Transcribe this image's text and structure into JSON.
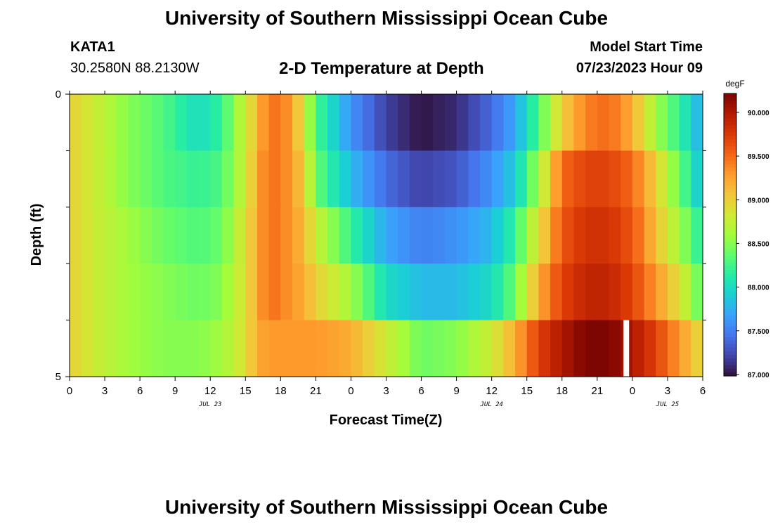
{
  "header": {
    "title": "University of Southern Mississippi Ocean Cube",
    "station": "KATA1",
    "coordinates": "30.2580N  88.2130W",
    "plot_title": "2-D Temperature at Depth",
    "model_start_label": "Model Start Time",
    "model_start_time": "07/23/2023 Hour 09"
  },
  "footer": {
    "title": "University of Southern Mississippi Ocean Cube"
  },
  "chart_data": {
    "type": "heatmap",
    "title": "2-D Temperature at Depth",
    "xlabel": "Forecast Time(Z)",
    "ylabel": "Depth (ft)",
    "x_tick_labels": [
      "0",
      "3",
      "6",
      "9",
      "12",
      "15",
      "18",
      "21",
      "0",
      "3",
      "6",
      "9",
      "12",
      "15",
      "18",
      "21",
      "0",
      "3",
      "6"
    ],
    "x_date_labels": [
      {
        "label": "JUL 23",
        "hour_index": 12
      },
      {
        "label": "JUL 24",
        "hour_index": 36
      },
      {
        "label": "JUL 25",
        "hour_index": 51
      }
    ],
    "x_range_hours": [
      0,
      54
    ],
    "y_tick_labels": [
      {
        "value": 0,
        "label": "0"
      },
      {
        "value": 5,
        "label": "5"
      }
    ],
    "y_range": [
      0,
      5
    ],
    "y_minor_ticks": [
      1,
      2,
      3,
      4
    ],
    "colorbar": {
      "label": "degF",
      "range": [
        86.9833,
        90.2167
      ],
      "tick_labels": [
        "90.000",
        "89.500",
        "89.000",
        "88.500",
        "88.000",
        "87.500",
        "87.000"
      ],
      "tick_values": [
        90.0,
        89.5,
        89.0,
        88.5,
        88.0,
        87.5,
        87.0
      ],
      "colormap": [
        "#30123b",
        "#4145ab",
        "#4675ed",
        "#39a2fc",
        "#1bcfd4",
        "#24eca6",
        "#61fc6c",
        "#a4fc3b",
        "#d1e834",
        "#f3c63a",
        "#fe9b2d",
        "#f36315",
        "#d93806",
        "#b11901",
        "#7a0402"
      ]
    },
    "depth_levels": [
      0,
      1,
      2,
      3,
      4,
      5
    ],
    "temperature_degF_by_depth": [
      {
        "depth": 0,
        "t": [
          [
            0,
            89.0
          ],
          [
            2,
            88.8
          ],
          [
            5,
            88.5
          ],
          [
            8,
            88.3
          ],
          [
            11,
            88.0
          ],
          [
            13,
            88.2
          ],
          [
            15,
            88.8
          ],
          [
            16,
            89.1
          ],
          [
            17,
            89.5
          ],
          [
            19,
            89.3
          ],
          [
            20,
            88.8
          ],
          [
            21,
            88.3
          ],
          [
            24,
            87.6
          ],
          [
            27,
            87.2
          ],
          [
            30,
            87.0
          ],
          [
            33,
            87.1
          ],
          [
            36,
            87.4
          ],
          [
            38,
            87.7
          ],
          [
            40,
            88.3
          ],
          [
            42,
            89.0
          ],
          [
            44,
            89.4
          ],
          [
            46,
            89.5
          ],
          [
            48,
            89.2
          ],
          [
            50,
            88.6
          ],
          [
            52,
            88.2
          ],
          [
            54,
            87.7
          ]
        ]
      },
      {
        "depth": 1,
        "t": [
          [
            0,
            89.0
          ],
          [
            2,
            88.8
          ],
          [
            5,
            88.5
          ],
          [
            8,
            88.3
          ],
          [
            11,
            88.2
          ],
          [
            13,
            88.3
          ],
          [
            15,
            88.8
          ],
          [
            16,
            89.2
          ],
          [
            17,
            89.5
          ],
          [
            19,
            89.3
          ],
          [
            20,
            89.0
          ],
          [
            21,
            88.4
          ],
          [
            24,
            87.8
          ],
          [
            27,
            87.4
          ],
          [
            30,
            87.2
          ],
          [
            33,
            87.3
          ],
          [
            36,
            87.6
          ],
          [
            38,
            87.9
          ],
          [
            40,
            88.6
          ],
          [
            42,
            89.5
          ],
          [
            44,
            89.7
          ],
          [
            46,
            89.7
          ],
          [
            48,
            89.5
          ],
          [
            50,
            89.0
          ],
          [
            52,
            88.4
          ],
          [
            54,
            87.8
          ]
        ]
      },
      {
        "depth": 2,
        "t": [
          [
            0,
            89.0
          ],
          [
            2,
            88.8
          ],
          [
            5,
            88.6
          ],
          [
            8,
            88.4
          ],
          [
            11,
            88.3
          ],
          [
            13,
            88.4
          ],
          [
            15,
            88.9
          ],
          [
            16,
            89.2
          ],
          [
            17,
            89.5
          ],
          [
            19,
            89.3
          ],
          [
            20,
            89.1
          ],
          [
            21,
            88.8
          ],
          [
            24,
            88.2
          ],
          [
            27,
            87.7
          ],
          [
            30,
            87.5
          ],
          [
            33,
            87.6
          ],
          [
            36,
            87.8
          ],
          [
            38,
            88.2
          ],
          [
            40,
            88.9
          ],
          [
            42,
            89.6
          ],
          [
            44,
            89.8
          ],
          [
            46,
            89.8
          ],
          [
            48,
            89.6
          ],
          [
            50,
            89.1
          ],
          [
            52,
            88.6
          ],
          [
            54,
            88.1
          ]
        ]
      },
      {
        "depth": 3,
        "t": [
          [
            0,
            89.0
          ],
          [
            2,
            88.8
          ],
          [
            5,
            88.6
          ],
          [
            8,
            88.5
          ],
          [
            11,
            88.4
          ],
          [
            13,
            88.5
          ],
          [
            15,
            88.9
          ],
          [
            16,
            89.2
          ],
          [
            17,
            89.5
          ],
          [
            19,
            89.3
          ],
          [
            20,
            89.2
          ],
          [
            21,
            89.0
          ],
          [
            24,
            88.6
          ],
          [
            27,
            88.0
          ],
          [
            30,
            87.8
          ],
          [
            33,
            87.8
          ],
          [
            36,
            88.0
          ],
          [
            38,
            88.4
          ],
          [
            40,
            89.2
          ],
          [
            42,
            89.7
          ],
          [
            44,
            89.9
          ],
          [
            46,
            89.9
          ],
          [
            48,
            89.7
          ],
          [
            50,
            89.3
          ],
          [
            52,
            88.9
          ],
          [
            54,
            88.3
          ]
        ]
      },
      {
        "depth": 4,
        "t": [
          [
            0,
            89.0
          ],
          [
            2,
            88.8
          ],
          [
            5,
            88.6
          ],
          [
            8,
            88.5
          ],
          [
            11,
            88.4
          ],
          [
            13,
            88.5
          ],
          [
            15,
            88.9
          ],
          [
            16,
            89.2
          ],
          [
            17,
            89.4
          ],
          [
            19,
            89.3
          ],
          [
            20,
            89.2
          ],
          [
            21,
            89.2
          ],
          [
            24,
            89.0
          ],
          [
            27,
            88.4
          ],
          [
            30,
            88.1
          ],
          [
            33,
            88.2
          ],
          [
            36,
            88.5
          ],
          [
            38,
            88.9
          ],
          [
            40,
            89.5
          ],
          [
            42,
            89.9
          ],
          [
            44,
            90.1
          ],
          [
            46,
            90.1
          ],
          [
            48,
            89.9
          ],
          [
            50,
            89.5
          ],
          [
            52,
            89.1
          ],
          [
            54,
            88.6
          ]
        ]
      },
      {
        "depth": 5,
        "t": [
          [
            0,
            89.0
          ],
          [
            2,
            88.8
          ],
          [
            5,
            88.6
          ],
          [
            8,
            88.5
          ],
          [
            11,
            88.5
          ],
          [
            13,
            88.6
          ],
          [
            15,
            88.9
          ],
          [
            16,
            89.2
          ],
          [
            17,
            89.3
          ],
          [
            19,
            89.3
          ],
          [
            20,
            89.3
          ],
          [
            21,
            89.3
          ],
          [
            24,
            89.2
          ],
          [
            27,
            88.8
          ],
          [
            30,
            88.4
          ],
          [
            33,
            88.5
          ],
          [
            36,
            88.8
          ],
          [
            38,
            89.2
          ],
          [
            40,
            89.7
          ],
          [
            42,
            90.0
          ],
          [
            44,
            90.2
          ],
          [
            46,
            90.2
          ],
          [
            48,
            90.0
          ],
          [
            50,
            89.7
          ],
          [
            52,
            89.3
          ],
          [
            54,
            88.9
          ]
        ]
      }
    ],
    "missing_cells": [
      {
        "hour": 47,
        "depth": 5
      }
    ]
  }
}
